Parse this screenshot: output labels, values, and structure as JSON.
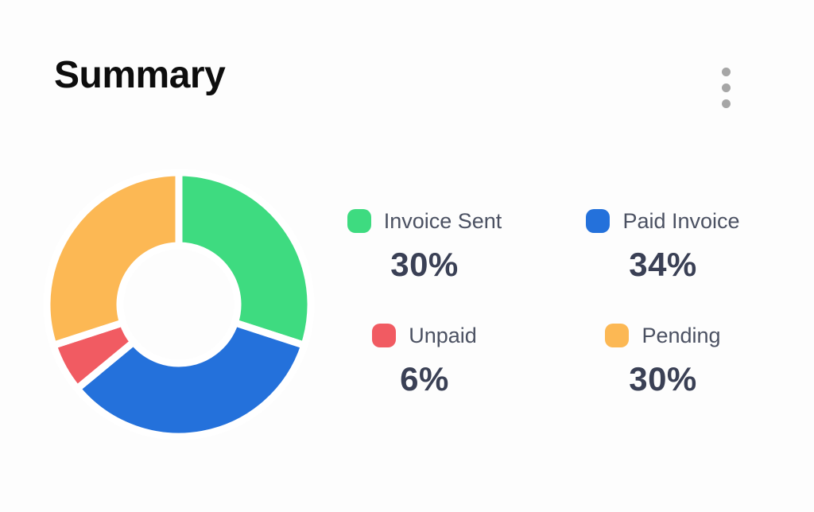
{
  "header": {
    "title": "Summary"
  },
  "chart_data": {
    "type": "pie",
    "variant": "donut",
    "title": "Summary",
    "categories": [
      "Invoice Sent",
      "Paid Invoice",
      "Unpaid",
      "Pending"
    ],
    "values": [
      30,
      34,
      6,
      30
    ],
    "unit": "%",
    "start_angle_deg": 0,
    "direction": "clockwise",
    "inner_radius_ratio": 0.46,
    "legend_position": "right",
    "items": [
      {
        "label": "Invoice Sent",
        "value": 30,
        "pct_label": "30%",
        "color": "#3EDB80"
      },
      {
        "label": "Paid Invoice",
        "value": 34,
        "pct_label": "34%",
        "color": "#2471DB"
      },
      {
        "label": "Unpaid",
        "value": 6,
        "pct_label": "6%",
        "color": "#F15B62"
      },
      {
        "label": "Pending",
        "value": 30,
        "pct_label": "30%",
        "color": "#FCB854"
      }
    ]
  },
  "colors": {
    "background": "#FDFDFD",
    "title_text": "#0D0D0D",
    "label_text": "#4B5162",
    "value_text": "#3A4055",
    "menu_dots": "#A6A6A6",
    "segment_gap": "#FFFFFF"
  }
}
